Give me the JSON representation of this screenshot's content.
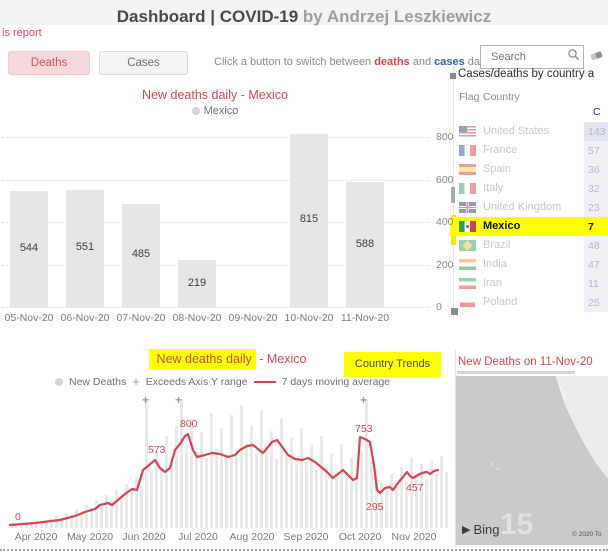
{
  "header": {
    "title_main": "Dashboard | COVID-19",
    "title_by": " by Andrzej Leszkiewicz",
    "back_link": "is report"
  },
  "toolbar": {
    "deaths_button": "Deaths",
    "cases_button": "Cases",
    "hint_prefix": "Click a button to switch between ",
    "hint_deaths": "deaths",
    "hint_and": " and ",
    "hint_cases": "cases",
    "hint_suffix": " data"
  },
  "search": {
    "placeholder": "Search"
  },
  "country_table": {
    "title": "Cases/deaths by country a",
    "col_flag": "Flag",
    "col_country": "Country",
    "col_value": "C",
    "rows": [
      {
        "flag": "us",
        "country": "United States",
        "value": "143",
        "shaded": true,
        "selected": false
      },
      {
        "flag": "fr",
        "country": "France",
        "value": "57",
        "shaded": false,
        "selected": false
      },
      {
        "flag": "es",
        "country": "Spain",
        "value": "36",
        "shaded": false,
        "selected": false
      },
      {
        "flag": "it",
        "country": "Italy",
        "value": "32",
        "shaded": false,
        "selected": false
      },
      {
        "flag": "gb",
        "country": "United Kingdom",
        "value": "23",
        "shaded": false,
        "selected": false
      },
      {
        "flag": "mx",
        "country": "Mexico",
        "value": "7",
        "shaded": false,
        "selected": true
      },
      {
        "flag": "br",
        "country": "Brazil",
        "value": "48",
        "shaded": false,
        "selected": false
      },
      {
        "flag": "in",
        "country": "India",
        "value": "47",
        "shaded": false,
        "selected": false
      },
      {
        "flag": "ir",
        "country": "Iran",
        "value": "11",
        "shaded": false,
        "selected": false
      },
      {
        "flag": "pl",
        "country": "Poland",
        "value": "25",
        "shaded": false,
        "selected": false
      }
    ]
  },
  "trends_button": "Country Trends",
  "map": {
    "title": "New Deaths on 11-Nov-20",
    "bing": "Bing",
    "copyright": "© 2020 To",
    "watermark": "15"
  },
  "colors": {
    "accent_red": "#d64554",
    "accent_blue": "#3a5fc8",
    "highlight_yellow": "#ffff00",
    "bar_fill": "#e6e6e6"
  },
  "chart_data": [
    {
      "type": "bar",
      "title": "New deaths daily - Mexico",
      "legend": [
        "Mexico"
      ],
      "categories": [
        "05-Nov-20",
        "06-Nov-20",
        "07-Nov-20",
        "08-Nov-20",
        "09-Nov-20",
        "10-Nov-20",
        "11-Nov-20"
      ],
      "values": [
        544,
        551,
        485,
        219,
        null,
        815,
        588
      ],
      "ylim": [
        0,
        800
      ],
      "yticks": [
        0,
        200,
        400,
        600,
        800
      ],
      "ylabel": "",
      "xlabel": "",
      "grid": "dotted",
      "legend_position": "top"
    },
    {
      "type": "line",
      "title_highlight": "New deaths daily",
      "title_rest": " - Mexico",
      "legend": [
        {
          "marker": "dot",
          "label": "New Deaths"
        },
        {
          "marker": "plus",
          "label": "Exceeds Axis Y range"
        },
        {
          "marker": "line",
          "label": "7 days moving average"
        }
      ],
      "x_ticks": [
        "Apr 2020",
        "May 2020",
        "Jun 2020",
        "Jul 2020",
        "Aug 2020",
        "Sep 2020",
        "Oct 2020",
        "Nov 2020"
      ],
      "x_tick_centers": [
        28,
        82,
        136,
        190,
        244,
        298,
        352,
        406
      ],
      "annotations": [
        {
          "text": "0",
          "x": 7,
          "y": 111
        },
        {
          "text": "573",
          "x": 140,
          "y": 44
        },
        {
          "text": "800",
          "x": 172,
          "y": 18
        },
        {
          "text": "753",
          "x": 347,
          "y": 23
        },
        {
          "text": "295",
          "x": 358,
          "y": 101
        },
        {
          "text": "457",
          "x": 398,
          "y": 82
        }
      ],
      "plus_marker_x": [
        137,
        170,
        355
      ],
      "bar_step": 5,
      "bar_x0": 2,
      "bar_heights": [
        0.02,
        0.03,
        0.02,
        0.04,
        0.03,
        0.05,
        0.04,
        0.06,
        0.07,
        0.09,
        0.08,
        0.12,
        0.1,
        0.15,
        0.12,
        0.18,
        0.15,
        0.22,
        0.17,
        0.26,
        0.21,
        0.3,
        0.25,
        0.34,
        0.28,
        0.4,
        0.33,
        1.0,
        0.45,
        0.6,
        0.48,
        0.72,
        0.55,
        0.8,
        1.0,
        0.65,
        0.85,
        0.6,
        0.75,
        0.55,
        0.9,
        0.62,
        0.78,
        0.58,
        0.88,
        0.6,
        0.95,
        0.66,
        0.8,
        0.58,
        0.92,
        0.64,
        0.76,
        0.54,
        0.85,
        0.58,
        0.7,
        0.5,
        0.78,
        0.52,
        0.65,
        0.45,
        0.72,
        0.48,
        0.58,
        0.4,
        0.66,
        0.42,
        0.55,
        0.38,
        0.6,
        1.0,
        0.52,
        0.46,
        0.35,
        0.3,
        0.42,
        0.32,
        0.48,
        0.36,
        0.55,
        0.4,
        0.5,
        0.38,
        0.52,
        0.42,
        0.56,
        0.44
      ],
      "line_points": [
        [
          2,
          125
        ],
        [
          27,
          123
        ],
        [
          52,
          120
        ],
        [
          67,
          116
        ],
        [
          77,
          112
        ],
        [
          87,
          109
        ],
        [
          92,
          105
        ],
        [
          100,
          103
        ],
        [
          104,
          105
        ],
        [
          110,
          100
        ],
        [
          117,
          94
        ],
        [
          124,
          89
        ],
        [
          129,
          90
        ],
        [
          135,
          70
        ],
        [
          140,
          66
        ],
        [
          147,
          60
        ],
        [
          152,
          68
        ],
        [
          157,
          72
        ],
        [
          162,
          68
        ],
        [
          167,
          50
        ],
        [
          172,
          44
        ],
        [
          177,
          36
        ],
        [
          180,
          34
        ],
        [
          185,
          50
        ],
        [
          189,
          57
        ],
        [
          197,
          55
        ],
        [
          204,
          53
        ],
        [
          212,
          54
        ],
        [
          220,
          57
        ],
        [
          227,
          55
        ],
        [
          232,
          50
        ],
        [
          239,
          46
        ],
        [
          245,
          45
        ],
        [
          250,
          49
        ],
        [
          255,
          53
        ],
        [
          260,
          47
        ],
        [
          264,
          42
        ],
        [
          269,
          40
        ],
        [
          275,
          48
        ],
        [
          280,
          55
        ],
        [
          287,
          59
        ],
        [
          294,
          60
        ],
        [
          300,
          58
        ],
        [
          307,
          62
        ],
        [
          312,
          66
        ],
        [
          319,
          72
        ],
        [
          325,
          78
        ],
        [
          330,
          74
        ],
        [
          335,
          70
        ],
        [
          340,
          75
        ],
        [
          345,
          80
        ],
        [
          349,
          78
        ],
        [
          352,
          37
        ],
        [
          357,
          39
        ],
        [
          362,
          42
        ],
        [
          366,
          65
        ],
        [
          369,
          90
        ],
        [
          372,
          93
        ],
        [
          377,
          88
        ],
        [
          382,
          87
        ],
        [
          385,
          90
        ],
        [
          390,
          83
        ],
        [
          395,
          77
        ],
        [
          399,
          72
        ],
        [
          402,
          76
        ],
        [
          405,
          78
        ],
        [
          410,
          75
        ],
        [
          414,
          73
        ],
        [
          419,
          72
        ],
        [
          422,
          74
        ],
        [
          426,
          71
        ],
        [
          430,
          70
        ]
      ]
    }
  ]
}
